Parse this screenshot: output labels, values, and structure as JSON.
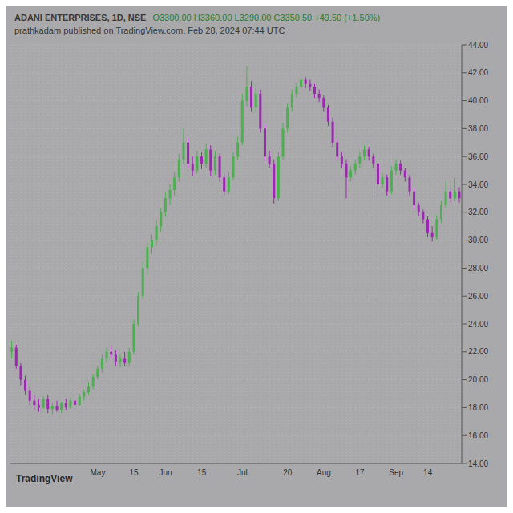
{
  "chart_data": {
    "type": "candlestick",
    "title": "ADANI ENTERPRISES, 1D, NSE",
    "ohlc_text": "O3300.00 H3360.00 L3290.00 C3350.50 +49.50 (+1.50%)",
    "subtitle": "prathkadam published on TradingView.com, Feb 28, 2024 07:44 UTC",
    "watermark": "TradingView",
    "colors": {
      "up": "#4caf50",
      "down": "#9c27b0"
    },
    "grid": true,
    "ylim": [
      14,
      44
    ],
    "yticks": [
      {
        "value": 14,
        "label": "14.00"
      },
      {
        "value": 16,
        "label": "16.00"
      },
      {
        "value": 18,
        "label": "18.00"
      },
      {
        "value": 20,
        "label": "20.00"
      },
      {
        "value": 22,
        "label": "22.00"
      },
      {
        "value": 24,
        "label": "24.00"
      },
      {
        "value": 26,
        "label": "26.00"
      },
      {
        "value": 28,
        "label": "28.00"
      },
      {
        "value": 30,
        "label": "30.00"
      },
      {
        "value": 32,
        "label": "32.00"
      },
      {
        "value": 34,
        "label": "34.00"
      },
      {
        "value": 36,
        "label": "36.00"
      },
      {
        "value": 38,
        "label": "38.00"
      },
      {
        "value": 40,
        "label": "40.00"
      },
      {
        "value": 42,
        "label": "42.00"
      },
      {
        "value": 44,
        "label": "44.00"
      }
    ],
    "categories": [
      null,
      null,
      null,
      null,
      null,
      null,
      null,
      null,
      null,
      null,
      null,
      null,
      null,
      null,
      null,
      null,
      null,
      null,
      null,
      "May",
      null,
      null,
      null,
      null,
      null,
      null,
      null,
      "15",
      null,
      null,
      null,
      null,
      null,
      null,
      "Jun",
      null,
      null,
      null,
      null,
      null,
      null,
      null,
      "15",
      null,
      null,
      null,
      null,
      null,
      null,
      null,
      null,
      "Jul",
      null,
      null,
      null,
      null,
      null,
      null,
      null,
      null,
      null,
      "20",
      null,
      null,
      null,
      null,
      null,
      null,
      null,
      "Aug",
      null,
      null,
      null,
      null,
      null,
      null,
      null,
      "17",
      null,
      null,
      null,
      null,
      null,
      null,
      null,
      "Sep",
      null,
      null,
      null,
      null,
      null,
      null,
      "14",
      null,
      null,
      null,
      null,
      null,
      null,
      null
    ],
    "ohlc": [
      [
        22.0,
        22.8,
        21.5,
        22.3
      ],
      [
        22.3,
        22.5,
        20.8,
        21.0
      ],
      [
        21.0,
        21.2,
        19.6,
        20.0
      ],
      [
        20.0,
        20.3,
        18.9,
        19.2
      ],
      [
        19.2,
        19.5,
        18.2,
        18.5
      ],
      [
        18.5,
        18.9,
        17.8,
        18.2
      ],
      [
        18.2,
        18.6,
        17.7,
        18.0
      ],
      [
        18.0,
        18.8,
        17.9,
        18.6
      ],
      [
        18.6,
        18.9,
        17.6,
        17.9
      ],
      [
        17.9,
        18.3,
        17.5,
        18.1
      ],
      [
        18.1,
        18.5,
        17.7,
        17.8
      ],
      [
        17.8,
        18.4,
        17.6,
        18.3
      ],
      [
        18.3,
        18.6,
        17.8,
        18.0
      ],
      [
        18.0,
        18.7,
        17.9,
        18.5
      ],
      [
        18.5,
        18.8,
        18.0,
        18.2
      ],
      [
        18.2,
        19.0,
        18.1,
        18.8
      ],
      [
        18.8,
        19.3,
        18.5,
        19.1
      ],
      [
        19.1,
        19.8,
        18.9,
        19.5
      ],
      [
        19.5,
        20.4,
        19.3,
        20.2
      ],
      [
        20.2,
        21.0,
        20.0,
        20.8
      ],
      [
        20.8,
        21.8,
        20.5,
        21.5
      ],
      [
        21.5,
        22.3,
        21.2,
        22.0
      ],
      [
        22.0,
        22.4,
        21.5,
        21.8
      ],
      [
        21.8,
        22.1,
        21.0,
        21.3
      ],
      [
        21.3,
        21.8,
        20.9,
        21.5
      ],
      [
        21.5,
        22.0,
        21.0,
        21.2
      ],
      [
        21.2,
        22.3,
        21.0,
        22.0
      ],
      [
        22.0,
        24.3,
        21.8,
        24.0
      ],
      [
        24.0,
        26.3,
        23.8,
        26.0
      ],
      [
        26.0,
        28.4,
        25.8,
        28.0
      ],
      [
        28.0,
        29.8,
        27.5,
        29.5
      ],
      [
        29.5,
        30.4,
        29.0,
        30.0
      ],
      [
        30.0,
        31.4,
        29.6,
        31.0
      ],
      [
        31.0,
        32.3,
        30.6,
        32.0
      ],
      [
        32.0,
        33.4,
        31.7,
        33.0
      ],
      [
        33.0,
        34.0,
        32.5,
        33.6
      ],
      [
        33.6,
        34.9,
        33.2,
        34.5
      ],
      [
        34.5,
        36.2,
        34.2,
        35.8
      ],
      [
        35.8,
        38.0,
        35.5,
        37.0
      ],
      [
        37.0,
        37.3,
        35.2,
        35.5
      ],
      [
        35.5,
        36.0,
        34.6,
        35.0
      ],
      [
        35.0,
        36.4,
        34.8,
        36.0
      ],
      [
        36.0,
        36.3,
        35.1,
        35.5
      ],
      [
        35.5,
        36.9,
        35.2,
        36.5
      ],
      [
        36.5,
        36.8,
        34.6,
        35.0
      ],
      [
        35.0,
        36.4,
        34.7,
        36.0
      ],
      [
        36.0,
        36.2,
        34.2,
        34.5
      ],
      [
        34.5,
        34.8,
        33.2,
        33.5
      ],
      [
        33.5,
        34.9,
        33.3,
        34.5
      ],
      [
        34.5,
        36.3,
        34.3,
        36.0
      ],
      [
        36.0,
        37.4,
        35.8,
        37.0
      ],
      [
        37.0,
        40.5,
        36.8,
        40.0
      ],
      [
        40.0,
        42.5,
        39.6,
        41.0
      ],
      [
        41.0,
        41.4,
        39.2,
        39.5
      ],
      [
        39.5,
        40.9,
        39.1,
        40.5
      ],
      [
        40.5,
        40.8,
        37.7,
        38.0
      ],
      [
        38.0,
        38.3,
        35.7,
        36.0
      ],
      [
        36.0,
        36.4,
        35.2,
        35.5
      ],
      [
        35.5,
        35.8,
        32.6,
        33.0
      ],
      [
        33.0,
        36.3,
        32.8,
        36.0
      ],
      [
        36.0,
        38.4,
        35.8,
        38.0
      ],
      [
        38.0,
        39.8,
        37.7,
        39.5
      ],
      [
        39.5,
        40.8,
        39.2,
        40.5
      ],
      [
        40.5,
        41.3,
        40.2,
        41.0
      ],
      [
        41.0,
        41.8,
        40.7,
        41.5
      ],
      [
        41.5,
        41.7,
        40.9,
        41.2
      ],
      [
        41.2,
        41.5,
        40.7,
        41.0
      ],
      [
        41.0,
        41.2,
        40.2,
        40.5
      ],
      [
        40.5,
        40.8,
        39.9,
        40.2
      ],
      [
        40.2,
        40.4,
        39.2,
        39.5
      ],
      [
        39.5,
        39.7,
        38.2,
        38.5
      ],
      [
        38.5,
        38.8,
        36.7,
        37.0
      ],
      [
        37.0,
        37.2,
        35.7,
        36.0
      ],
      [
        36.0,
        36.3,
        35.2,
        35.5
      ],
      [
        35.5,
        35.8,
        33.0,
        34.5
      ],
      [
        34.5,
        35.3,
        34.2,
        35.0
      ],
      [
        35.0,
        35.8,
        34.7,
        35.5
      ],
      [
        35.5,
        36.3,
        35.2,
        36.0
      ],
      [
        36.0,
        36.8,
        35.7,
        36.5
      ],
      [
        36.5,
        36.7,
        35.7,
        36.0
      ],
      [
        36.0,
        36.2,
        35.2,
        35.5
      ],
      [
        35.5,
        35.7,
        33.0,
        34.0
      ],
      [
        34.0,
        34.8,
        33.7,
        34.5
      ],
      [
        34.5,
        34.7,
        33.2,
        33.5
      ],
      [
        33.5,
        35.3,
        33.3,
        35.0
      ],
      [
        35.0,
        35.8,
        34.7,
        35.5
      ],
      [
        35.5,
        35.7,
        34.7,
        35.0
      ],
      [
        35.0,
        35.2,
        34.2,
        34.5
      ],
      [
        34.5,
        34.7,
        33.2,
        33.5
      ],
      [
        33.5,
        33.7,
        32.2,
        32.5
      ],
      [
        32.5,
        32.7,
        31.7,
        32.0
      ],
      [
        32.0,
        32.2,
        31.2,
        31.5
      ],
      [
        31.5,
        31.7,
        30.2,
        30.5
      ],
      [
        30.5,
        31.0,
        29.9,
        30.2
      ],
      [
        30.2,
        31.8,
        30.0,
        31.5
      ],
      [
        31.5,
        32.8,
        31.2,
        32.5
      ],
      [
        32.5,
        34.2,
        32.3,
        33.5
      ],
      [
        33.5,
        33.7,
        32.7,
        33.0
      ],
      [
        33.0,
        34.5,
        32.8,
        33.5
      ],
      [
        33.5,
        33.8,
        32.7,
        33.0
      ]
    ]
  }
}
